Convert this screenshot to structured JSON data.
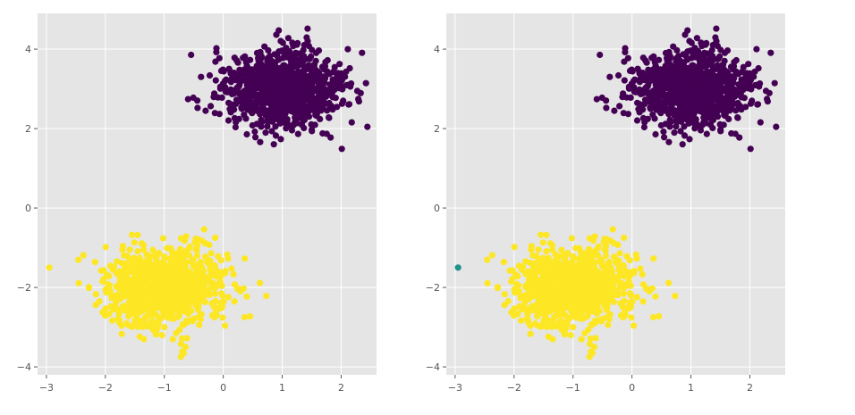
{
  "chart_data": [
    {
      "type": "scatter",
      "title": "",
      "xlabel": "",
      "ylabel": "",
      "xlim": [
        -3.15,
        2.6
      ],
      "ylim": [
        -4.2,
        4.9
      ],
      "xticks": [
        -3,
        -2,
        -1,
        0,
        1,
        2
      ],
      "yticks": [
        -4,
        -2,
        0,
        2,
        4
      ],
      "xtick_labels": [
        "−3",
        "−2",
        "−1",
        "0",
        "1",
        "2"
      ],
      "ytick_labels": [
        "−4",
        "−2",
        "0",
        "2",
        "4"
      ],
      "grid": true,
      "series": [
        {
          "color": "#440154",
          "count": 1000,
          "center": [
            1.0,
            3.0
          ],
          "spread": 0.5
        },
        {
          "color": "#fde725",
          "count": 1000,
          "center": [
            -1.0,
            -2.0
          ],
          "spread": 0.5,
          "points": [
            [
              -2.95,
              -1.5
            ]
          ]
        }
      ]
    },
    {
      "type": "scatter",
      "title": "",
      "xlabel": "",
      "ylabel": "",
      "xlim": [
        -3.15,
        2.6
      ],
      "ylim": [
        -4.2,
        4.9
      ],
      "xticks": [
        -3,
        -2,
        -1,
        0,
        1,
        2
      ],
      "yticks": [
        -4,
        -2,
        0,
        2,
        4
      ],
      "xtick_labels": [
        "−3",
        "−2",
        "−1",
        "0",
        "1",
        "2"
      ],
      "ytick_labels": [
        "−4",
        "−2",
        "0",
        "2",
        "4"
      ],
      "grid": true,
      "series": [
        {
          "color": "#440154",
          "count": 1000,
          "center": [
            1.0,
            3.0
          ],
          "spread": 0.5
        },
        {
          "color": "#fde725",
          "count": 1000,
          "center": [
            -1.0,
            -2.0
          ],
          "spread": 0.5
        },
        {
          "color": "#21918c",
          "count": 1,
          "points": [
            [
              -2.95,
              -1.5
            ]
          ]
        }
      ]
    }
  ]
}
